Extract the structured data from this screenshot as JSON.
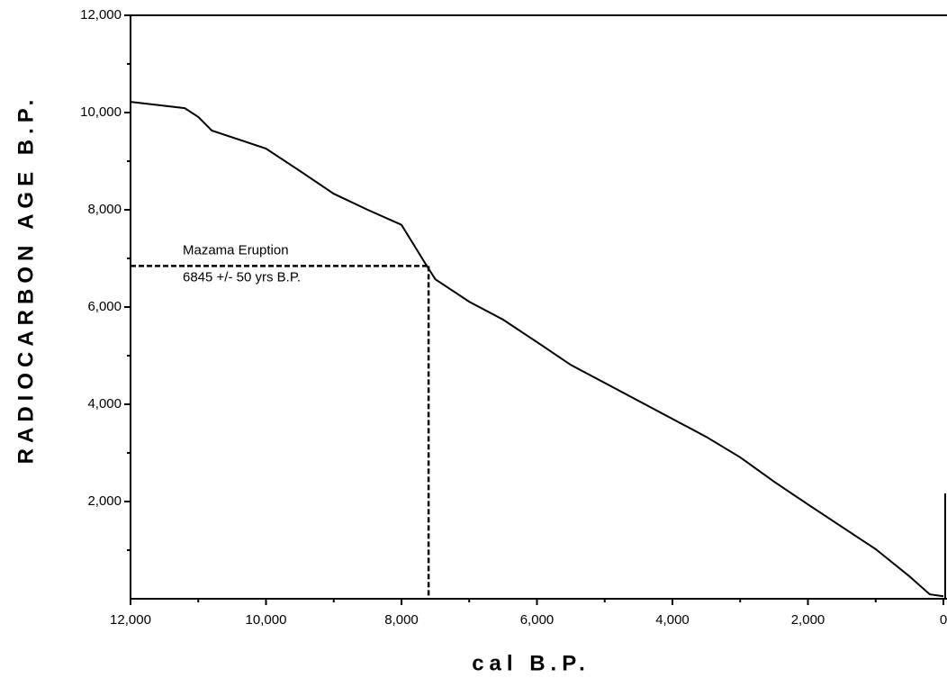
{
  "chart_data": {
    "type": "line",
    "ylabel": "RADIOCARBON AGE B.P.",
    "xlabel": "cal B.P.",
    "x": [
      12000,
      11200,
      11000,
      10800,
      10000,
      9500,
      9000,
      8500,
      8000,
      7650,
      7500,
      7000,
      6500,
      6000,
      5500,
      5000,
      4500,
      4000,
      3500,
      3000,
      2500,
      2000,
      1500,
      1000,
      500,
      200,
      0
    ],
    "values": [
      10220,
      10090,
      9910,
      9630,
      9260,
      8800,
      8330,
      8000,
      7690,
      6900,
      6570,
      6110,
      5740,
      5280,
      4810,
      4440,
      4070,
      3700,
      3330,
      2910,
      2410,
      1940,
      1480,
      1020,
      460,
      90,
      50
    ],
    "color": "#000000",
    "xlim": [
      12000,
      0
    ],
    "ylim": [
      0,
      12000
    ],
    "xticks": [
      {
        "value": 12000,
        "label": "12,000"
      },
      {
        "value": 10000,
        "label": "10,000"
      },
      {
        "value": 8000,
        "label": "8,000"
      },
      {
        "value": 6000,
        "label": "6,000"
      },
      {
        "value": 4000,
        "label": "4,000"
      },
      {
        "value": 2000,
        "label": "2,000"
      },
      0
    ],
    "yticks": [
      {
        "value": 2000,
        "label": "2,000"
      },
      {
        "value": 4000,
        "label": "4,000"
      },
      {
        "value": 6000,
        "label": "6,000"
      },
      {
        "value": 8000,
        "label": "8,000"
      },
      {
        "value": 10000,
        "label": "10,000"
      },
      {
        "value": 12000,
        "label": "12,000"
      }
    ],
    "xminorticks": [
      11000,
      9000,
      7000,
      5000,
      3000,
      1000
    ],
    "yminorticks": [
      1000,
      3000,
      5000,
      7000,
      9000,
      11000
    ],
    "annotation": {
      "text": [
        "Mazama Eruption",
        "6845 +/- 50 yrs B.P."
      ],
      "x": 7600,
      "y": 6845
    }
  }
}
